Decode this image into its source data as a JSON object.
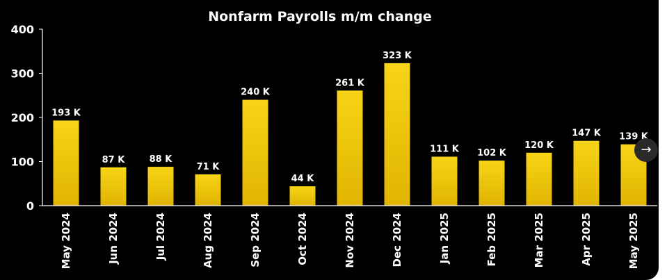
{
  "colors": {
    "background": "#000000",
    "bar_top": "#f7d417",
    "bar_bottom": "#e0b400",
    "text": "#ffffff",
    "axis": "#ffffff"
  },
  "next_button": {
    "icon": "arrow-right-icon",
    "glyph": "→"
  },
  "chart_data": {
    "type": "bar",
    "title": "Nonfarm Payrolls m/m change",
    "xlabel": "",
    "ylabel": "",
    "ylim": [
      0,
      400
    ],
    "yticks": [
      0,
      100,
      200,
      300,
      400
    ],
    "grid": false,
    "categories": [
      "May 2024",
      "Jun 2024",
      "Jul 2024",
      "Aug 2024",
      "Sep 2024",
      "Oct 2024",
      "Nov 2024",
      "Dec 2024",
      "Jan 2025",
      "Feb 2025",
      "Mar 2025",
      "Apr 2025",
      "May 2025"
    ],
    "values": [
      193,
      87,
      88,
      71,
      240,
      44,
      261,
      323,
      111,
      102,
      120,
      147,
      139
    ],
    "data_labels": [
      "193 K",
      "87 K",
      "88 K",
      "71 K",
      "240 K",
      "44 K",
      "261 K",
      "323 K",
      "111 K",
      "102 K",
      "120 K",
      "147 K",
      "139 K"
    ]
  }
}
